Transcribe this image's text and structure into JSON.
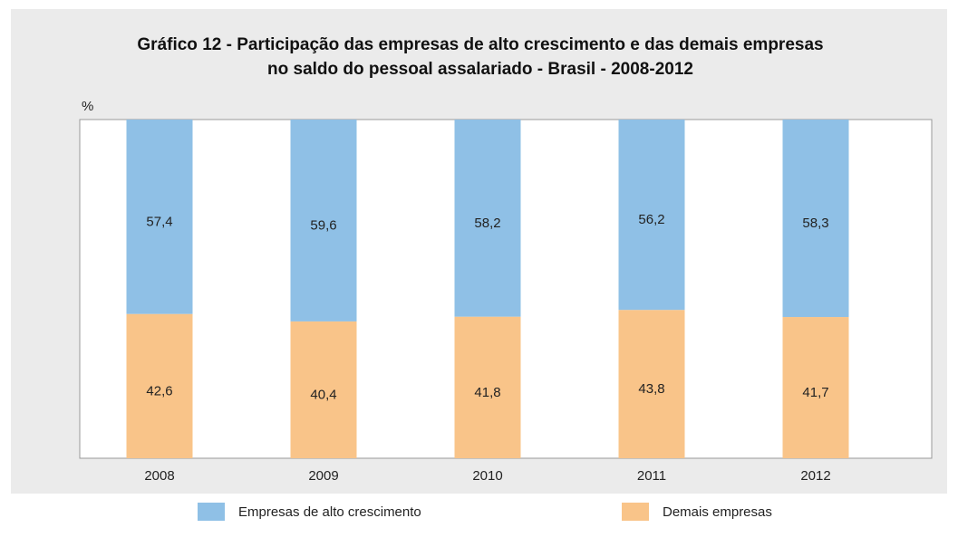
{
  "chart_data": {
    "type": "stacked_bar",
    "title": [
      "Gráfico 12 - Participação das empresas de alto crescimento e das demais empresas",
      "no saldo do pessoal assalariado - Brasil - 2008-2012"
    ],
    "y_unit": "%",
    "categories": [
      "2008",
      "2009",
      "2010",
      "2011",
      "2012"
    ],
    "series": [
      {
        "name": "Demais empresas",
        "color": "#f9c489",
        "values": [
          42.6,
          40.4,
          41.8,
          43.8,
          41.7
        ],
        "value_labels": [
          "42,6",
          "40,4",
          "41,8",
          "43,8",
          "41,7"
        ]
      },
      {
        "name": "Empresas de alto crescimento",
        "color": "#8fc0e6",
        "values": [
          57.4,
          59.6,
          58.2,
          56.2,
          58.3
        ],
        "value_labels": [
          "57,4",
          "59,6",
          "58,2",
          "56,2",
          "58,3"
        ]
      }
    ],
    "legend_order": [
      1,
      0
    ],
    "ylim": [
      0,
      100
    ]
  }
}
